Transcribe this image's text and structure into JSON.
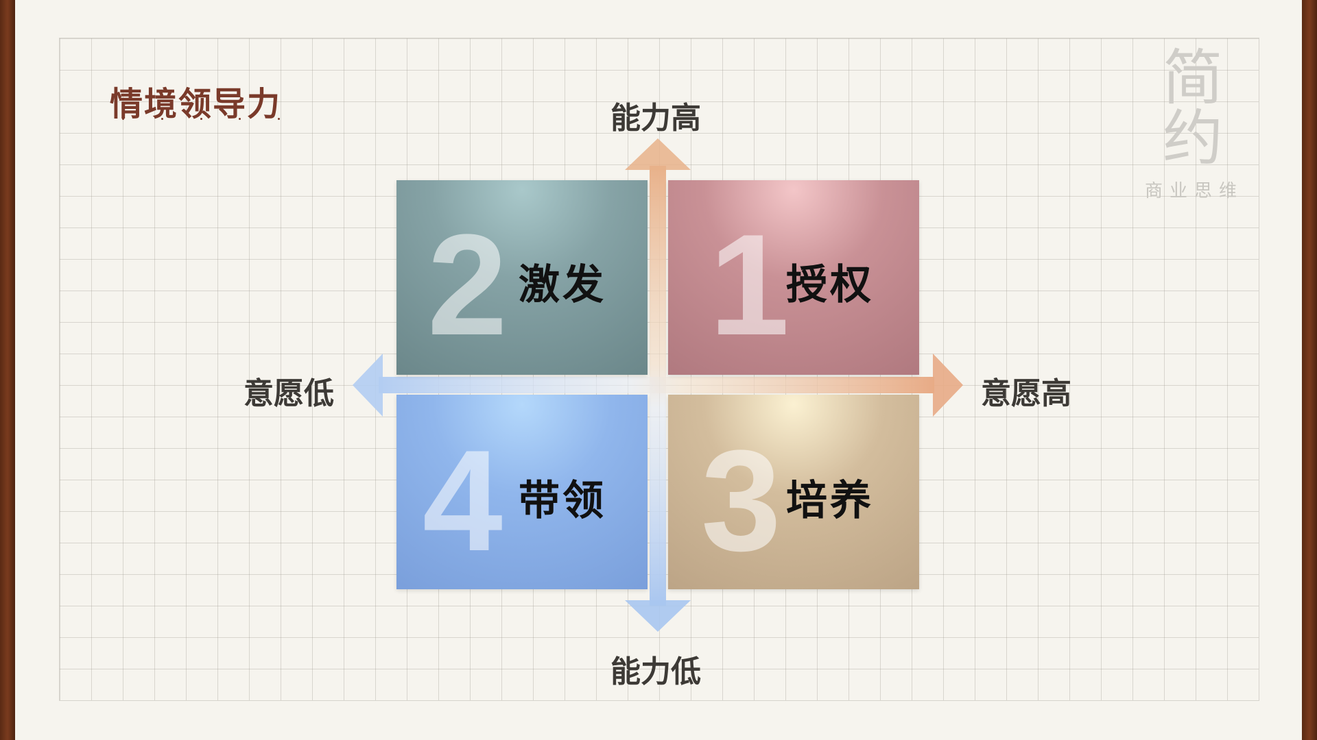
{
  "title": "情境领导力",
  "logo": {
    "main": "简约",
    "sub": "商业思维"
  },
  "axes": {
    "top": "能力高",
    "bottom": "能力低",
    "left": "意愿低",
    "right": "意愿高"
  },
  "quadrants": [
    {
      "number": "2",
      "label": "激发",
      "color": "#6f8f92"
    },
    {
      "number": "1",
      "label": "授权",
      "color": "#b87f86"
    },
    {
      "number": "4",
      "label": "带领",
      "color": "#82a8e3"
    },
    {
      "number": "3",
      "label": "培养",
      "color": "#c4ad8c"
    }
  ],
  "colors": {
    "title": "#7a3a2a",
    "arrow_warm": "#e8b48e",
    "arrow_cool": "#b9d0f2"
  }
}
